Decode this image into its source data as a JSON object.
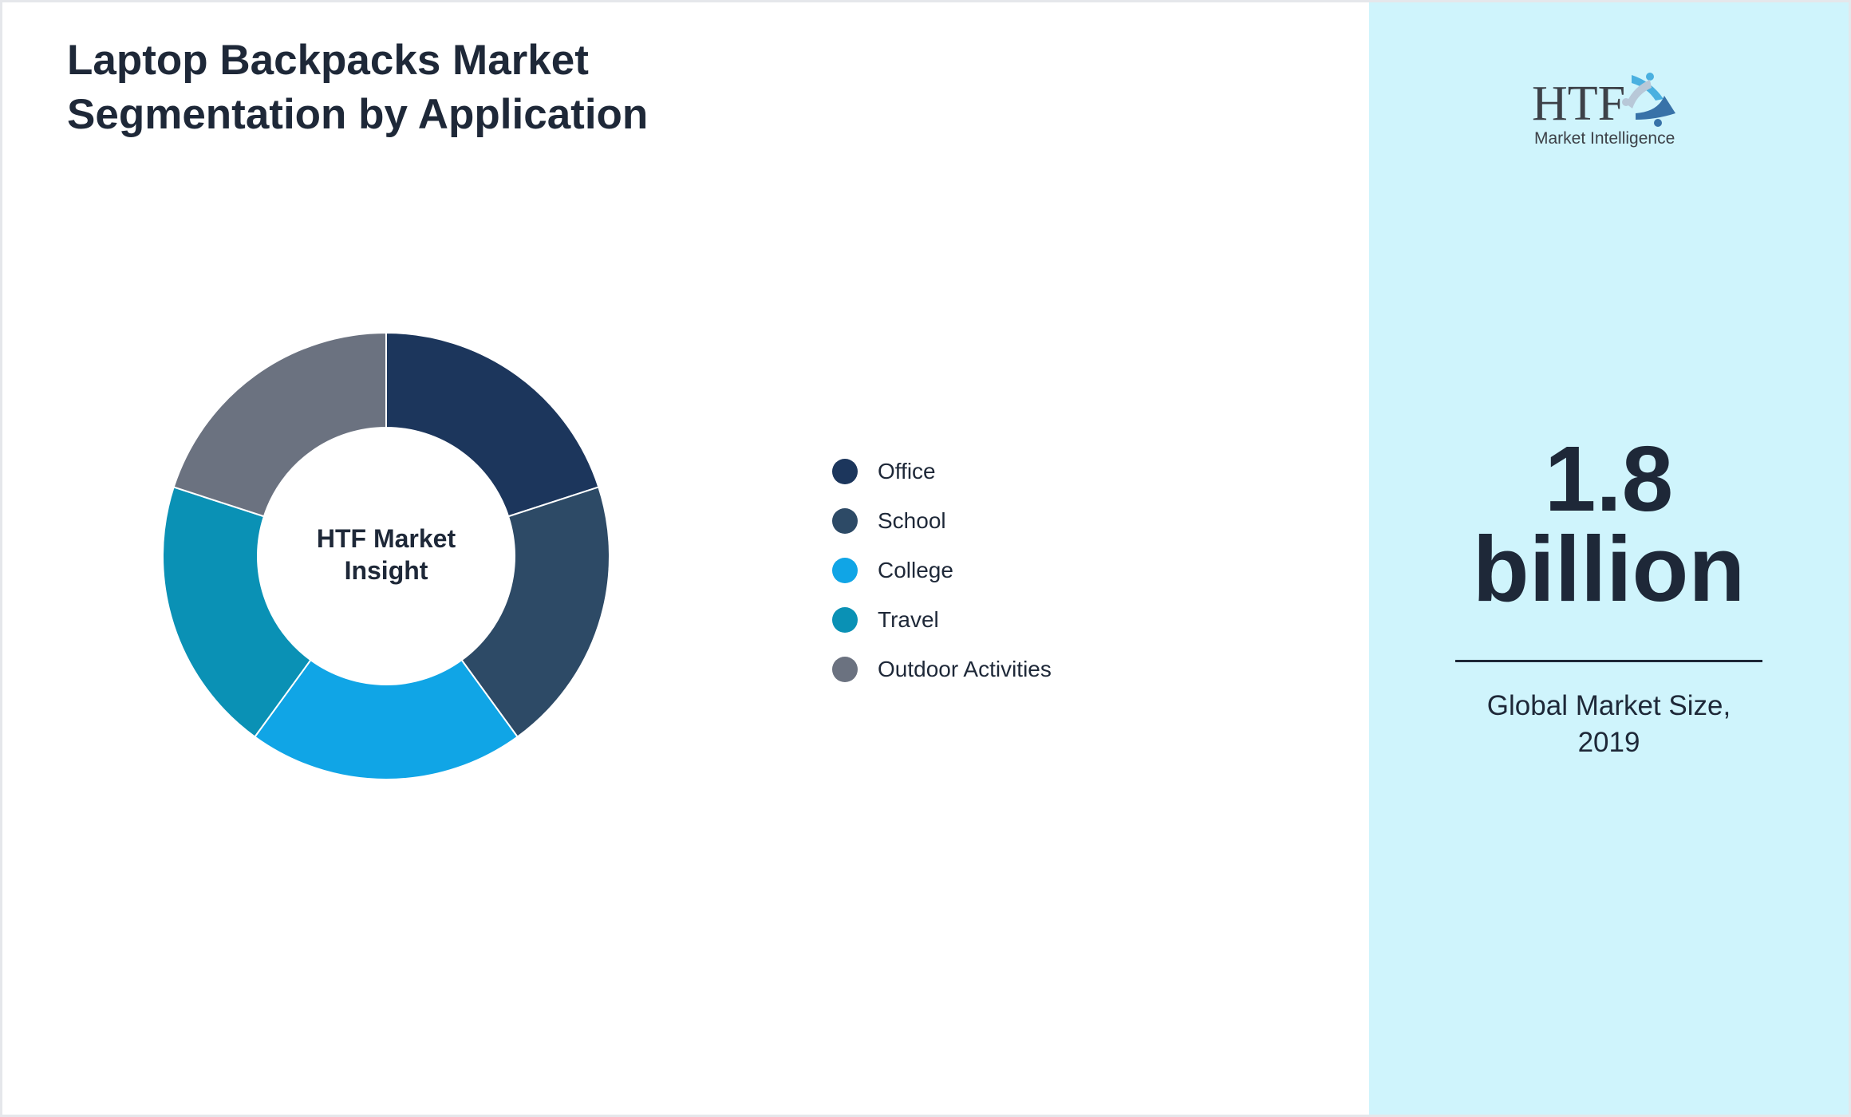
{
  "title_lines": [
    "Laptop Backpacks Market",
    "Segmentation by Application"
  ],
  "chart_data": {
    "type": "pie",
    "variant": "donut",
    "center_label_lines": [
      "HTF Market",
      "Insight"
    ],
    "categories": [
      "Office",
      "School",
      "College",
      "Travel",
      "Outdoor Activities"
    ],
    "values": [
      20,
      20,
      20,
      20,
      20
    ],
    "colors": [
      "#1c365c",
      "#2d4a66",
      "#10a5e6",
      "#0a91b5",
      "#6b7280"
    ],
    "legend_position": "right"
  },
  "logo": {
    "text_main": "HTF",
    "text_sub": "Market Intelligence"
  },
  "stat": {
    "value": "1.8",
    "unit": "billion",
    "caption_lines": [
      "Global Market Size,",
      "2019"
    ]
  },
  "colors": {
    "panel_bg": "#cff4fc",
    "text": "#1e2838"
  }
}
